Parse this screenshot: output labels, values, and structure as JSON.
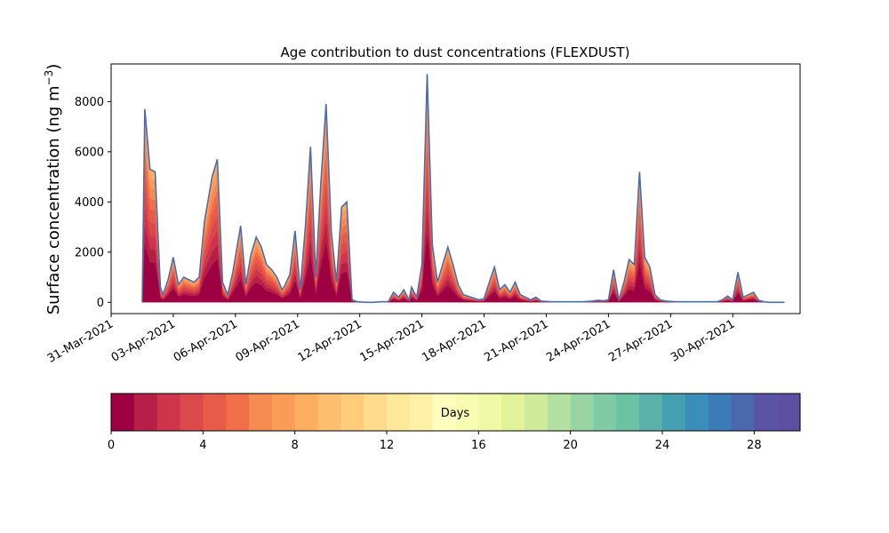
{
  "chart_data": {
    "type": "area",
    "title": "Age contribution to dust concentrations (FLEXDUST)",
    "xlabel": "",
    "ylabel": "Surface concentration (ng m",
    "ylabel_superscript": "−3",
    "ylabel_close": ")",
    "xlim": [
      "2021-03-31T00:00",
      "2021-05-03T06:00"
    ],
    "ylim": [
      -450,
      9500
    ],
    "yticks": [
      0,
      2000,
      4000,
      6000,
      8000
    ],
    "xticks": [
      "31-Mar-2021",
      "03-Apr-2021",
      "06-Apr-2021",
      "09-Apr-2021",
      "12-Apr-2021",
      "15-Apr-2021",
      "18-Apr-2021",
      "21-Apr-2021",
      "24-Apr-2021",
      "27-Apr-2021",
      "30-Apr-2021"
    ],
    "series_description": "stacked contribution by age (0–30 days), total outline shown",
    "total_series": {
      "x": [
        "2021-04-01T12:00",
        "2021-04-01T15:00",
        "2021-04-01T21:00",
        "2021-04-02T03:00",
        "2021-04-02T09:00",
        "2021-04-02T12:00",
        "2021-04-02T18:00",
        "2021-04-03T00:00",
        "2021-04-03T06:00",
        "2021-04-03T12:00",
        "2021-04-03T18:00",
        "2021-04-04T00:00",
        "2021-04-04T06:00",
        "2021-04-04T12:00",
        "2021-04-04T21:00",
        "2021-04-05T03:00",
        "2021-04-05T09:00",
        "2021-04-05T15:00",
        "2021-04-05T21:00",
        "2021-04-06T06:00",
        "2021-04-06T12:00",
        "2021-04-06T18:00",
        "2021-04-07T00:00",
        "2021-04-07T06:00",
        "2021-04-07T12:00",
        "2021-04-07T18:00",
        "2021-04-08T00:00",
        "2021-04-08T06:00",
        "2021-04-08T09:00",
        "2021-04-08T15:00",
        "2021-04-08T21:00",
        "2021-04-09T03:00",
        "2021-04-09T09:00",
        "2021-04-09T15:00",
        "2021-04-09T21:00",
        "2021-04-10T03:00",
        "2021-04-10T09:00",
        "2021-04-10T15:00",
        "2021-04-10T21:00",
        "2021-04-11T03:00",
        "2021-04-11T09:00",
        "2021-04-11T15:00",
        "2021-04-11T21:00",
        "2021-04-12T06:00",
        "2021-04-12T15:00",
        "2021-04-13T00:00",
        "2021-04-13T09:00",
        "2021-04-13T15:00",
        "2021-04-13T21:00",
        "2021-04-14T03:00",
        "2021-04-14T09:00",
        "2021-04-14T12:00",
        "2021-04-14T18:00",
        "2021-04-15T00:00",
        "2021-04-15T06:00",
        "2021-04-15T12:00",
        "2021-04-15T18:00",
        "2021-04-16T00:00",
        "2021-04-16T06:00",
        "2021-04-16T12:00",
        "2021-04-16T18:00",
        "2021-04-17T00:00",
        "2021-04-17T09:00",
        "2021-04-17T18:00",
        "2021-04-18T00:00",
        "2021-04-18T06:00",
        "2021-04-18T12:00",
        "2021-04-18T18:00",
        "2021-04-19T00:00",
        "2021-04-19T06:00",
        "2021-04-19T12:00",
        "2021-04-19T18:00",
        "2021-04-20T00:00",
        "2021-04-20T06:00",
        "2021-04-20T12:00",
        "2021-04-20T18:00",
        "2021-04-21T06:00",
        "2021-04-21T18:00",
        "2021-04-22T06:00",
        "2021-04-22T18:00",
        "2021-04-23T06:00",
        "2021-04-23T12:00",
        "2021-04-23T18:00",
        "2021-04-24T00:00",
        "2021-04-24T06:00",
        "2021-04-24T12:00",
        "2021-04-24T18:00",
        "2021-04-25T00:00",
        "2021-04-25T06:00",
        "2021-04-25T12:00",
        "2021-04-25T18:00",
        "2021-04-26T00:00",
        "2021-04-26T06:00",
        "2021-04-26T12:00",
        "2021-04-26T18:00",
        "2021-04-27T06:00",
        "2021-04-27T18:00",
        "2021-04-28T06:00",
        "2021-04-28T18:00",
        "2021-04-29T06:00",
        "2021-04-29T12:00",
        "2021-04-29T18:00",
        "2021-04-30T00:00",
        "2021-04-30T06:00",
        "2021-04-30T12:00",
        "2021-04-30T18:00",
        "2021-05-01T00:00",
        "2021-05-01T06:00",
        "2021-05-01T12:00",
        "2021-05-01T18:00",
        "2021-05-02T00:00",
        "2021-05-02T06:00",
        "2021-05-02T12:00"
      ],
      "y": [
        0,
        7700,
        5300,
        5200,
        600,
        300,
        900,
        1800,
        700,
        1000,
        900,
        800,
        1000,
        3200,
        5000,
        5700,
        800,
        300,
        1200,
        3050,
        700,
        1900,
        2600,
        2200,
        1500,
        1300,
        1000,
        500,
        650,
        1100,
        2850,
        500,
        3000,
        6200,
        1000,
        4800,
        7900,
        2800,
        800,
        3800,
        4000,
        100,
        20,
        0,
        0,
        20,
        20,
        400,
        200,
        500,
        100,
        600,
        200,
        1500,
        9100,
        2300,
        800,
        1500,
        2200,
        1500,
        700,
        300,
        200,
        100,
        150,
        800,
        1400,
        500,
        700,
        400,
        800,
        300,
        200,
        100,
        200,
        50,
        20,
        20,
        20,
        20,
        50,
        80,
        60,
        100,
        1300,
        100,
        800,
        1700,
        1500,
        5200,
        1800,
        1400,
        300,
        100,
        50,
        20,
        20,
        20,
        20,
        20,
        100,
        250,
        100,
        1200,
        200,
        300,
        400,
        80,
        20,
        0,
        0,
        0,
        0
      ]
    },
    "colorbar": {
      "label": "Days",
      "ticks": [
        0,
        4,
        8,
        12,
        16,
        20,
        24,
        28
      ],
      "range": [
        0,
        30
      ],
      "colormap": "Spectral",
      "colors": [
        "#9e0142",
        "#b61f47",
        "#ce354c",
        "#dc494c",
        "#e85b49",
        "#f06e4a",
        "#f68b52",
        "#fa9b58",
        "#fdae61",
        "#fdbe70",
        "#fecc7b",
        "#fedc8c",
        "#fee89a",
        "#fff1a8",
        "#fffebe",
        "#f7fcb3",
        "#eff8a5",
        "#e1f399",
        "#cdeb9b",
        "#b4e0a2",
        "#99d5a4",
        "#80cba4",
        "#6bc2a5",
        "#58b2ab",
        "#45a0b1",
        "#3a8eb9",
        "#3b7bb7",
        "#4b67ad",
        "#5b53a4",
        "#5e4fa2"
      ]
    },
    "outline_color": "#4a6db0"
  }
}
